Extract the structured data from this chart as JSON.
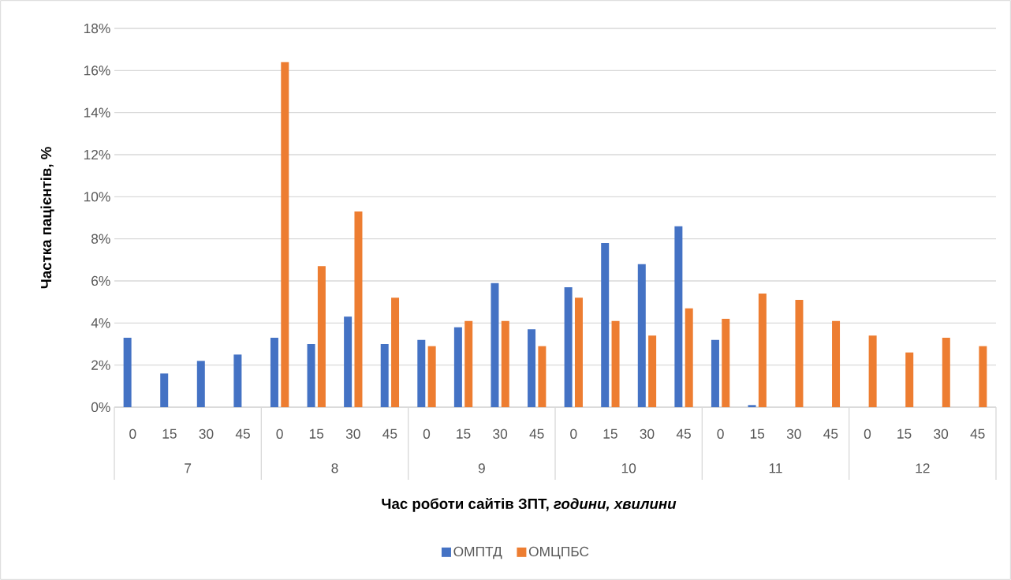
{
  "chart_data": {
    "type": "bar",
    "xlabel": "Час роботи сайтів ЗПТ, *години, хвилини*",
    "ylabel": "Частка пацієнтів, %",
    "categories": [
      "0",
      "15",
      "30",
      "45",
      "0",
      "15",
      "30",
      "45",
      "0",
      "15",
      "30",
      "45",
      "0",
      "15",
      "30",
      "45",
      "0",
      "15",
      "30",
      "45",
      "0",
      "15",
      "30",
      "45"
    ],
    "annotations": [
      "7",
      "8",
      "9",
      "10",
      "11",
      "12"
    ],
    "series": [
      {
        "name": "ОМПТД",
        "color": "#4472c4",
        "values": [
          3.3,
          1.6,
          2.2,
          2.5,
          3.3,
          3.0,
          4.3,
          3.0,
          3.2,
          3.8,
          5.9,
          3.7,
          5.7,
          7.8,
          6.8,
          8.6,
          3.2,
          0.1,
          null,
          null,
          null,
          null,
          null,
          null
        ]
      },
      {
        "name": "ОМЦПБС",
        "color": "#ed7d31",
        "values": [
          null,
          null,
          null,
          null,
          16.4,
          6.7,
          9.3,
          5.2,
          2.9,
          4.1,
          4.1,
          2.9,
          5.2,
          4.1,
          3.4,
          4.7,
          4.2,
          5.4,
          5.1,
          4.1,
          3.4,
          2.6,
          3.3,
          2.9
        ]
      }
    ],
    "ylim": [
      0,
      18
    ],
    "yticks": [
      {
        "value": 0,
        "label": "0%"
      },
      {
        "value": 2,
        "label": "2%"
      },
      {
        "value": 4,
        "label": "4%"
      },
      {
        "value": 6,
        "label": "6%"
      },
      {
        "value": 8,
        "label": "8%"
      },
      {
        "value": 10,
        "label": "10%"
      },
      {
        "value": 12,
        "label": "12%"
      },
      {
        "value": 14,
        "label": "14%"
      },
      {
        "value": 16,
        "label": "16%"
      },
      {
        "value": 18,
        "label": "18%"
      }
    ],
    "grid": "y",
    "legend": "bottom"
  }
}
